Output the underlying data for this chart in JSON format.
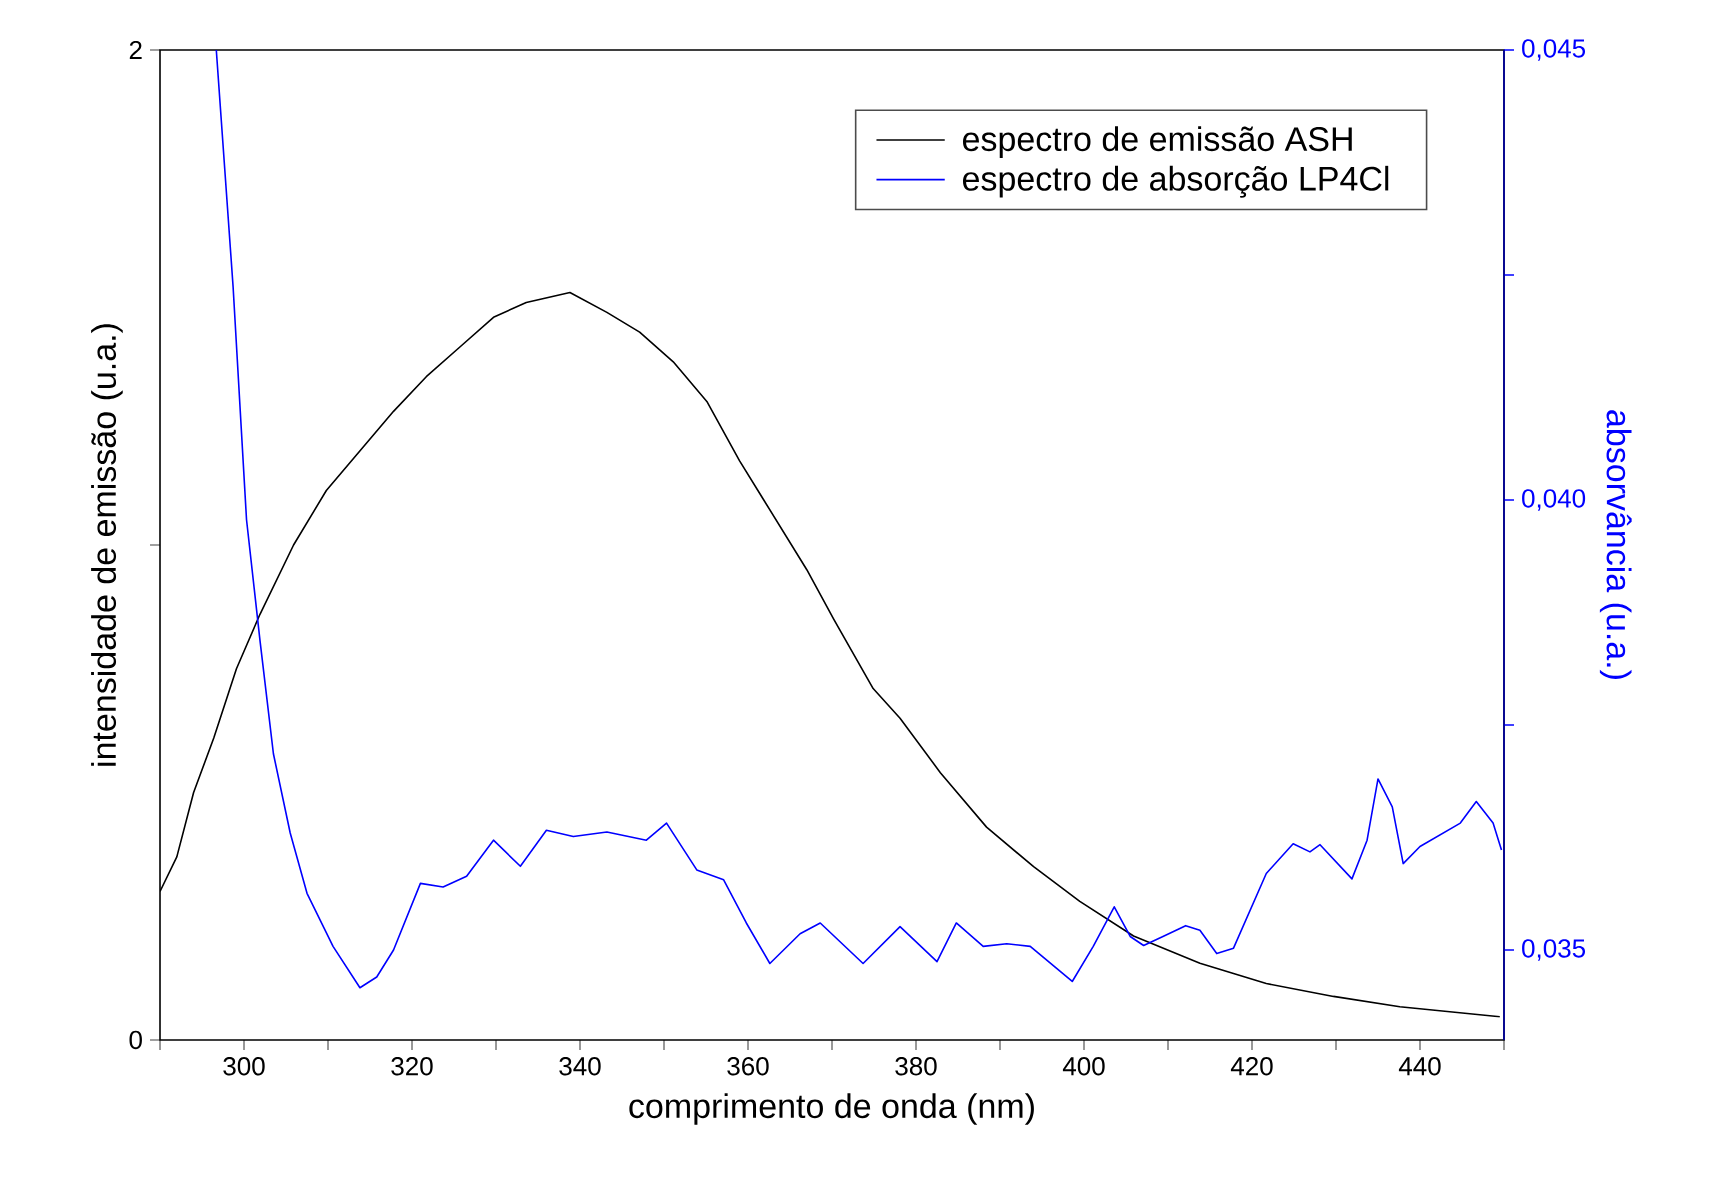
{
  "chart_data": {
    "type": "line",
    "xlabel": "comprimento de onda (nm)",
    "ylabel": "intensidade de emissão (u.a.)",
    "y2label": "absorvância (u.a.)",
    "xlim": [
      290,
      450
    ],
    "ylim": [
      0,
      2
    ],
    "y2lim": [
      0.034,
      0.045
    ],
    "xticks": [
      {
        "value": 290,
        "label": null
      },
      300,
      {
        "value": 310,
        "label": null
      },
      320,
      {
        "value": 330,
        "label": null
      },
      340,
      {
        "value": 350,
        "label": null
      },
      360,
      {
        "value": 370,
        "label": null
      },
      380,
      {
        "value": 390,
        "label": null
      },
      400,
      {
        "value": 410,
        "label": null
      },
      420,
      {
        "value": 430,
        "label": null
      },
      440,
      {
        "value": 450,
        "label": null
      }
    ],
    "yticks": [
      0,
      {
        "value": 1,
        "label": null
      },
      2
    ],
    "y2ticks": [
      {
        "value": 0.035,
        "label": "0,035"
      },
      {
        "value": 0.0375,
        "label": null
      },
      {
        "value": 0.04,
        "label": "0,040"
      },
      {
        "value": 0.0425,
        "label": null
      },
      {
        "value": 0.045,
        "label": "0,045"
      }
    ],
    "legend": "top right",
    "marker": "none",
    "line_style": "solid",
    "series": [
      {
        "name": "espectro de emissão ASH",
        "color": "#000000",
        "x": [
          290,
          292,
          294,
          296.4,
          299.1,
          301.9,
          305.9,
          309.8,
          313.8,
          317.8,
          321.7,
          325.7,
          329.7,
          333.6,
          338.8,
          343.2,
          347.1,
          351.1,
          355.1,
          359,
          363,
          367,
          370.2,
          374.9,
          378.1,
          382.9,
          388.4,
          394,
          399.5,
          405.9,
          413.8,
          421.7,
          429.7,
          437.6,
          449.5
        ],
        "values": [
          0.3,
          0.37,
          0.5,
          0.61,
          0.75,
          0.86,
          1.0,
          1.11,
          1.19,
          1.27,
          1.34,
          1.4,
          1.46,
          1.49,
          1.51,
          1.47,
          1.43,
          1.37,
          1.29,
          1.17,
          1.06,
          0.95,
          0.85,
          0.71,
          0.65,
          0.54,
          0.43,
          0.35,
          0.28,
          0.21,
          0.155,
          0.114,
          0.088,
          0.067,
          0.047
        ]
      },
      {
        "name": "espectro de absorção LP4Cl",
        "color": "#0000ff",
        "axis": "y2",
        "x": [
          296.7,
          298.7,
          300.3,
          301.9,
          303.5,
          305.5,
          307.5,
          310.6,
          313.8,
          315.8,
          317.8,
          321,
          323.7,
          326.5,
          329.7,
          332.9,
          336,
          339.2,
          343.2,
          347.9,
          350.3,
          353.9,
          357.1,
          359.8,
          362.6,
          366.2,
          368.6,
          373.7,
          378.1,
          382.5,
          384.8,
          388,
          390.8,
          393.6,
          398.6,
          401.1,
          403.6,
          405.5,
          407.1,
          409.4,
          412.1,
          413.8,
          415.8,
          417.8,
          421.7,
          424.9,
          426.9,
          428.1,
          431.9,
          433.7,
          435,
          436.7,
          438,
          440,
          444.8,
          446.7,
          448.7,
          449.7
        ],
        "values": [
          0.045,
          0.04237,
          0.03978,
          0.03844,
          0.03718,
          0.0363,
          0.03563,
          0.03504,
          0.03458,
          0.0347,
          0.035,
          0.03574,
          0.0357,
          0.03582,
          0.03622,
          0.03593,
          0.03633,
          0.03626,
          0.03631,
          0.03622,
          0.03641,
          0.03589,
          0.03578,
          0.0353,
          0.03485,
          0.03518,
          0.0353,
          0.03485,
          0.03526,
          0.03487,
          0.0353,
          0.03504,
          0.03507,
          0.03504,
          0.03465,
          0.03504,
          0.03548,
          0.03515,
          0.03505,
          0.03515,
          0.03527,
          0.03522,
          0.03496,
          0.03502,
          0.03585,
          0.03618,
          0.03609,
          0.03617,
          0.03579,
          0.03622,
          0.0369,
          0.03659,
          0.03596,
          0.03615,
          0.03641,
          0.03665,
          0.03641,
          0.03611
        ]
      }
    ]
  }
}
